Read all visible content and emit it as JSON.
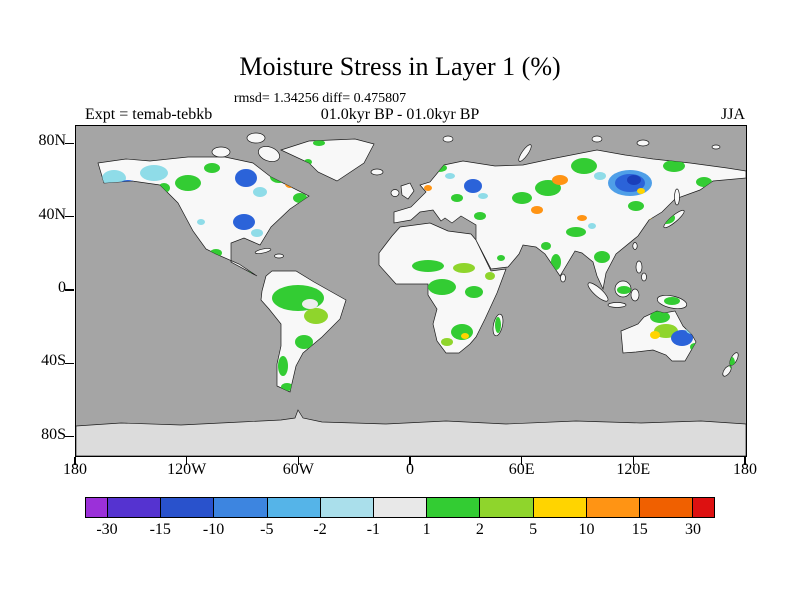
{
  "header": {
    "title": "Moisture Stress in Layer 1 (%)",
    "stats": "rmsd= 1.34256 diff= 0.475807",
    "period": "01.0kyr BP - 01.0kyr BP",
    "experiment": "Expt = temab-tebkb",
    "season": "JJA"
  },
  "axes": {
    "lat_ticks": [
      "80N",
      "40N",
      "0",
      "40S",
      "80S"
    ],
    "lon_ticks": [
      "180",
      "120W",
      "60W",
      "0",
      "60E",
      "120E",
      "180"
    ]
  },
  "chart_data": {
    "type": "heatmap",
    "title": "Moisture Stress in Layer 1 (%)",
    "variable": "Moisture Stress in Layer 1",
    "units": "%",
    "rmsd": 1.34256,
    "diff": 0.475807,
    "comparison": "01.0kyr BP - 01.0kyr BP",
    "experiment": "temab-tebkb",
    "season": "JJA",
    "projection": "equirectangular",
    "lon_range": [
      -180,
      180
    ],
    "lat_range": [
      -90,
      90
    ],
    "contour_levels": [
      -30,
      -15,
      -10,
      -5,
      -2,
      -1,
      1,
      2,
      5,
      10,
      15,
      30
    ],
    "level_colors": [
      "#9b30d9",
      "#5533d0",
      "#2952cc",
      "#3d85e0",
      "#55b4e8",
      "#aadfeb",
      "#e8e8e8",
      "#33cc33",
      "#8fd52c",
      "#ffd400",
      "#ff9414",
      "#f06000",
      "#dd1111"
    ],
    "ocean_color": "#a5a5a5",
    "land_color": "#f8f8f8",
    "antarctica_color": "#dcdcdc",
    "legend_position": "bottom",
    "legend_orientation": "horizontal"
  }
}
